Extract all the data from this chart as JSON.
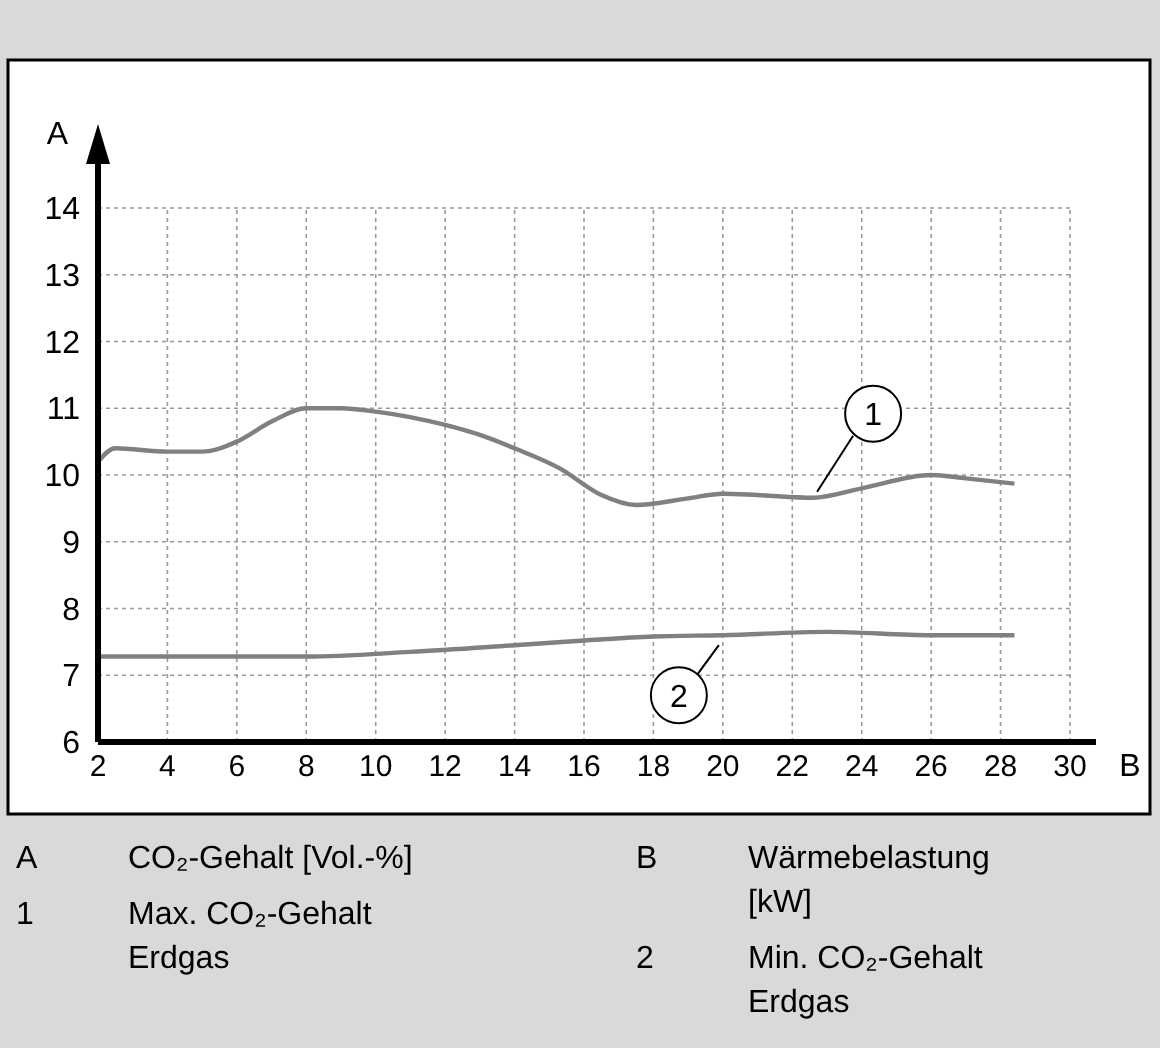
{
  "chart_data": {
    "type": "line",
    "xlabel": "B",
    "ylabel": "A",
    "xlim": [
      2,
      30
    ],
    "xticks": [
      2,
      4,
      6,
      8,
      10,
      12,
      14,
      16,
      18,
      20,
      22,
      24,
      26,
      28,
      30
    ],
    "ylim": [
      6,
      14
    ],
    "yticks": [
      6,
      7,
      8,
      9,
      10,
      11,
      12,
      13,
      14
    ],
    "grid": true,
    "marker": "none",
    "line_style": "solid",
    "series": [
      {
        "color": "#808080",
        "x": [
          2,
          2.5,
          4,
          5,
          6,
          7,
          8,
          9,
          10,
          12,
          13,
          14,
          15.3,
          16.5,
          17.5,
          19,
          20,
          21,
          22.6,
          24,
          26,
          27,
          28.4
        ],
        "values": [
          10.2,
          10.4,
          10.35,
          10.35,
          10.5,
          10.8,
          11.0,
          11.0,
          10.95,
          10.75,
          10.6,
          10.4,
          10.1,
          9.7,
          9.55,
          9.65,
          9.72,
          9.7,
          9.66,
          9.8,
          10.0,
          9.95,
          9.87
        ]
      },
      {
        "color": "#808080",
        "x": [
          2,
          5,
          8,
          11,
          14,
          16,
          18,
          20,
          23,
          26,
          28.4
        ],
        "values": [
          7.28,
          7.28,
          7.28,
          7.35,
          7.45,
          7.52,
          7.58,
          7.6,
          7.65,
          7.6,
          7.6
        ]
      }
    ],
    "annotations": [
      {
        "text": "1",
        "x": 22.6,
        "y": 9.66
      },
      {
        "text": "2",
        "x": 20,
        "y": 7.6
      },
      "A\tCO₂-Gehalt [Vol.-%]",
      "B\tWärmebelastung\n[kW]",
      "1\tMax. CO₂-Gehalt\nErdgas",
      "2\tMin. CO₂-Gehalt\nErdgas"
    ]
  }
}
